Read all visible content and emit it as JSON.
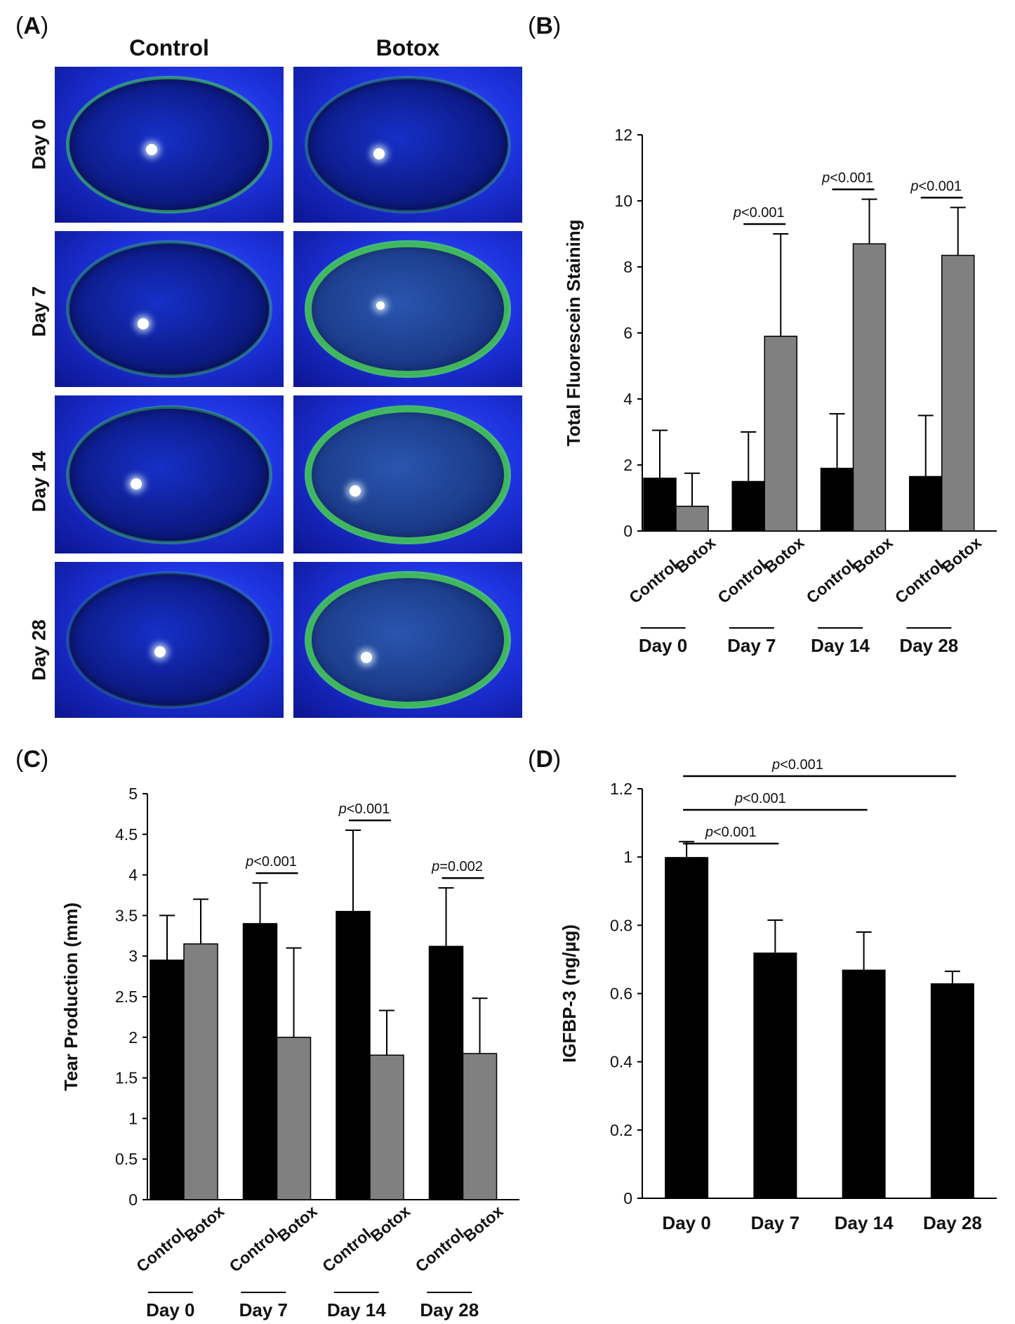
{
  "panels": {
    "A": {
      "label_open": "(",
      "label_letter": "A",
      "label_close": ")",
      "column_headers": [
        "Control",
        "Botox"
      ],
      "row_headers": [
        "Day 0",
        "Day 7",
        "Day 14",
        "Day 28"
      ],
      "image_description_hint": "fluorescein-stained-eye-photographs"
    },
    "B": {
      "label_open": "(",
      "label_letter": "B",
      "label_close": ")"
    },
    "C": {
      "label_open": "(",
      "label_letter": "C",
      "label_close": ")"
    },
    "D": {
      "label_open": "(",
      "label_letter": "D",
      "label_close": ")"
    }
  },
  "colors": {
    "control": "#000000",
    "botox": "#808080",
    "eye_blue": "#1e33e0",
    "fluorescein_green": "#46dc5a"
  },
  "chart_data": [
    {
      "id": "B",
      "type": "bar",
      "groups": [
        "Day 0",
        "Day 7",
        "Day 14",
        "Day 28"
      ],
      "series": [
        {
          "name": "Control",
          "values": [
            1.6,
            1.5,
            1.9,
            1.65
          ],
          "errors": [
            1.45,
            1.5,
            1.65,
            1.85
          ]
        },
        {
          "name": "Botox",
          "values": [
            0.75,
            5.9,
            8.7,
            8.35
          ],
          "errors": [
            1.0,
            3.1,
            1.35,
            1.45
          ]
        }
      ],
      "ylabel": "Total Fluorescein Staining",
      "ylim": [
        0,
        12
      ],
      "yticks": [
        0,
        2,
        4,
        6,
        8,
        10,
        12
      ],
      "yticks_labels": [
        "0",
        "2",
        "4",
        "6",
        "8",
        "10",
        "12"
      ],
      "category_labels": [
        "Control",
        "Botox"
      ],
      "significance": [
        {
          "group": 1,
          "label": "p<0.001"
        },
        {
          "group": 2,
          "label": "p<0.001"
        },
        {
          "group": 3,
          "label": "p<0.001"
        }
      ]
    },
    {
      "id": "C",
      "type": "bar",
      "groups": [
        "Day 0",
        "Day 7",
        "Day 14",
        "Day 28"
      ],
      "series": [
        {
          "name": "Control",
          "values": [
            2.95,
            3.4,
            3.55,
            3.12
          ],
          "errors": [
            0.55,
            0.5,
            1.0,
            0.72
          ]
        },
        {
          "name": "Botox",
          "values": [
            3.15,
            2.0,
            1.78,
            1.8
          ],
          "errors": [
            0.55,
            1.1,
            0.55,
            0.68
          ]
        }
      ],
      "ylabel": "Tear Production (mm)",
      "ylim": [
        0,
        5
      ],
      "yticks": [
        0,
        0.5,
        1,
        1.5,
        2,
        2.5,
        3,
        3.5,
        4,
        4.5,
        5
      ],
      "yticks_labels": [
        "0",
        "0.5",
        "1",
        "1.5",
        "2",
        "2.5",
        "3",
        "3.5",
        "4",
        "4.5",
        "5"
      ],
      "category_labels": [
        "Control",
        "Botox"
      ],
      "significance": [
        {
          "group": 1,
          "label": "p<0.001"
        },
        {
          "group": 2,
          "label": "p<0.001"
        },
        {
          "group": 3,
          "label": "p=0.002"
        }
      ]
    },
    {
      "id": "D",
      "type": "bar",
      "categories": [
        "Day 0",
        "Day 7",
        "Day 14",
        "Day 28"
      ],
      "values": [
        1.0,
        0.72,
        0.67,
        0.63
      ],
      "errors": [
        0.045,
        0.095,
        0.11,
        0.035
      ],
      "ylabel": "IGFBP-3 (ng/µg)",
      "ylim": [
        0,
        1.2
      ],
      "yticks": [
        0,
        0.2,
        0.4,
        0.6,
        0.8,
        1.0,
        1.2
      ],
      "yticks_labels": [
        "0",
        "0.2",
        "0.4",
        "0.6",
        "0.8",
        "1",
        "1.2"
      ],
      "significance": [
        {
          "from": 0,
          "to": 1,
          "label": "p<0.001"
        },
        {
          "from": 0,
          "to": 2,
          "label": "p<0.001"
        },
        {
          "from": 0,
          "to": 3,
          "label": "p<0.001"
        }
      ]
    }
  ]
}
